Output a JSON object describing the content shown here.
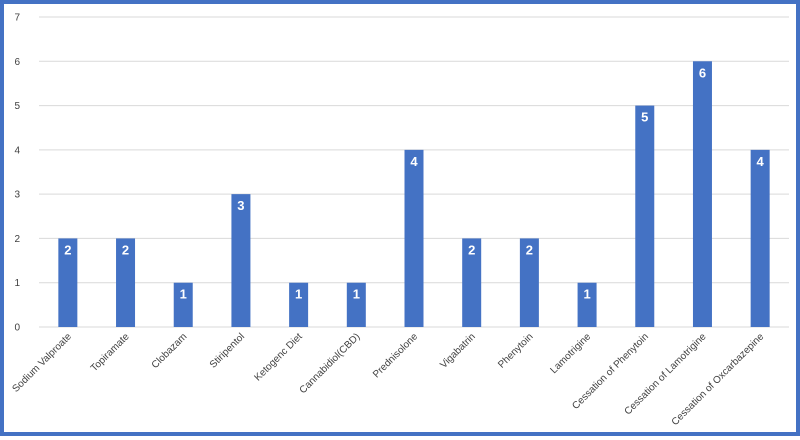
{
  "chart_data": {
    "type": "bar",
    "categories": [
      "Sodium Valproate",
      "Topiramate",
      "Clobazam",
      "Stiripentol",
      "Ketogenc Diet",
      "Cannabidiol(CBD)",
      "Prednisolone",
      "Vigabatrin",
      "Phenytoin",
      "Lamotrigine",
      "Cessation of Phenytoin",
      "Cessation of Lamotrigine",
      "Cessation of Oxcarbazepine"
    ],
    "values": [
      2,
      2,
      1,
      3,
      1,
      1,
      4,
      2,
      2,
      1,
      5,
      6,
      4
    ],
    "yticks": [
      "0",
      "1",
      "2",
      "3",
      "4",
      "5",
      "6",
      "7"
    ],
    "ylim": [
      0,
      7
    ],
    "grid": true,
    "legend": "none",
    "data_labels": true,
    "bar_color": "#4472c4",
    "frame_color": "#4472c4",
    "grid_color": "#d9d9d9",
    "text_color": "#404040"
  }
}
